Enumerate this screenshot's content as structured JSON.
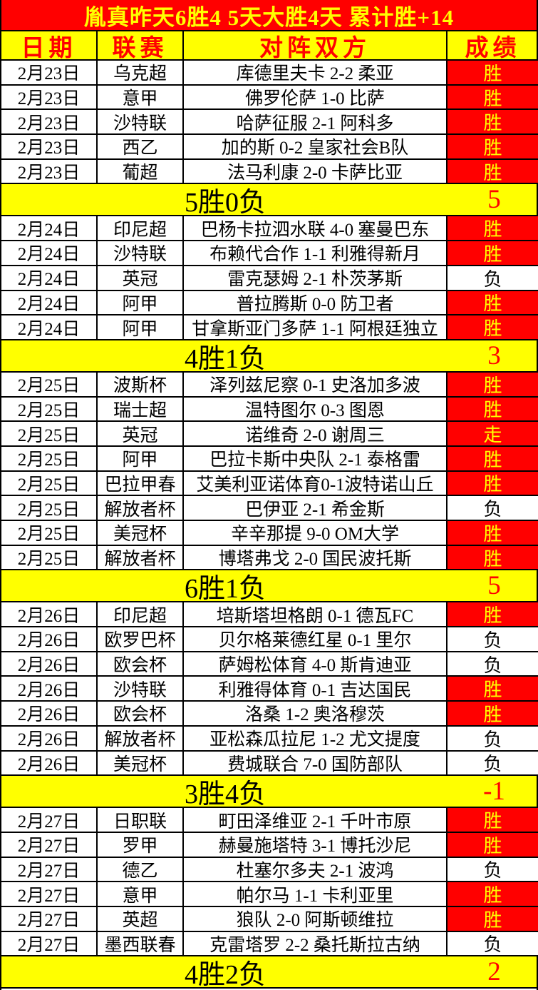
{
  "banner": {
    "title": "胤真昨天6胜4  5天大胜4天  累计胜+14"
  },
  "columns": {
    "date": "日期",
    "league": "联赛",
    "match": "对阵双方",
    "result": "成绩"
  },
  "colors": {
    "banner_bg": "#ff0000",
    "banner_text": "#ffff00",
    "header_bg": "#ffff00",
    "header_text": "#ff0000",
    "win_bg": "#ff0000",
    "win_text": "#ffff00",
    "loss_bg": "#ffffff",
    "loss_text": "#000000",
    "summary_bg": "#ffff00",
    "summary_label_text": "#000000",
    "summary_score_text": "#ff0000",
    "grid_line": "#000000"
  },
  "sections": [
    {
      "rows": [
        {
          "date": "2月23日",
          "league": "乌克超",
          "match": "库德里夫卡 2-2 柔亚",
          "result": "胜",
          "outcome": "win"
        },
        {
          "date": "2月23日",
          "league": "意甲",
          "match": "佛罗伦萨 1-0 比萨",
          "result": "胜",
          "outcome": "win"
        },
        {
          "date": "2月23日",
          "league": "沙特联",
          "match": "哈萨征服 2-1 阿科多",
          "result": "胜",
          "outcome": "win"
        },
        {
          "date": "2月23日",
          "league": "西乙",
          "match": "加的斯 0-2 皇家社会B队",
          "result": "胜",
          "outcome": "win"
        },
        {
          "date": "2月23日",
          "league": "葡超",
          "match": "法马利康 2-0 卡萨比亚",
          "result": "胜",
          "outcome": "win"
        }
      ],
      "summary": {
        "label": "5胜0负",
        "score": "5"
      }
    },
    {
      "rows": [
        {
          "date": "2月24日",
          "league": "印尼超",
          "match": "巴杨卡拉泗水联 4-0 塞曼巴东",
          "result": "胜",
          "outcome": "win"
        },
        {
          "date": "2月24日",
          "league": "沙特联",
          "match": "布赖代合作 1-1 利雅得新月",
          "result": "胜",
          "outcome": "win"
        },
        {
          "date": "2月24日",
          "league": "英冠",
          "match": "雷克瑟姆 2-1 朴茨茅斯",
          "result": "负",
          "outcome": "loss"
        },
        {
          "date": "2月24日",
          "league": "阿甲",
          "match": "普拉腾斯 0-0 防卫者",
          "result": "胜",
          "outcome": "win"
        },
        {
          "date": "2月24日",
          "league": "阿甲",
          "match": "甘拿斯亚门多萨 1-1 阿根廷独立",
          "result": "胜",
          "outcome": "win"
        }
      ],
      "summary": {
        "label": "4胜1负",
        "score": "3"
      }
    },
    {
      "rows": [
        {
          "date": "2月25日",
          "league": "波斯杯",
          "match": "泽列兹尼察 0-1 史洛加多波",
          "result": "胜",
          "outcome": "win"
        },
        {
          "date": "2月25日",
          "league": "瑞士超",
          "match": "温特图尔 0-3 图恩",
          "result": "胜",
          "outcome": "win"
        },
        {
          "date": "2月25日",
          "league": "英冠",
          "match": "诺维奇 2-0 谢周三",
          "result": "走",
          "outcome": "push"
        },
        {
          "date": "2月25日",
          "league": "阿甲",
          "match": "巴拉卡斯中央队 2-1 泰格雷",
          "result": "胜",
          "outcome": "win"
        },
        {
          "date": "2月25日",
          "league": "巴拉甲春",
          "match": "艾美利亚诺体育0-1波特诺山丘",
          "result": "胜",
          "outcome": "win"
        },
        {
          "date": "2月25日",
          "league": "解放者杯",
          "match": "巴伊亚 2-1 希金斯",
          "result": "负",
          "outcome": "loss"
        },
        {
          "date": "2月25日",
          "league": "美冠杯",
          "match": "辛辛那提 9-0 OM大学",
          "result": "胜",
          "outcome": "win"
        },
        {
          "date": "2月25日",
          "league": "解放者杯",
          "match": "博塔弗戈 2-0 国民波托斯",
          "result": "胜",
          "outcome": "win"
        }
      ],
      "summary": {
        "label": "6胜1负",
        "score": "5"
      }
    },
    {
      "rows": [
        {
          "date": "2月26日",
          "league": "印尼超",
          "match": "培斯塔坦格朗 0-1 德瓦FC",
          "result": "胜",
          "outcome": "win"
        },
        {
          "date": "2月26日",
          "league": "欧罗巴杯",
          "match": "贝尔格莱德红星 0-1 里尔",
          "result": "负",
          "outcome": "loss"
        },
        {
          "date": "2月26日",
          "league": "欧会杯",
          "match": "萨姆松体育 4-0 斯肯迪亚",
          "result": "负",
          "outcome": "loss"
        },
        {
          "date": "2月26日",
          "league": "沙特联",
          "match": "利雅得体育 0-1 吉达国民",
          "result": "胜",
          "outcome": "win"
        },
        {
          "date": "2月26日",
          "league": "欧会杯",
          "match": "洛桑 1-2 奥洛穆茨",
          "result": "胜",
          "outcome": "win"
        },
        {
          "date": "2月26日",
          "league": "解放者杯",
          "match": "亚松森瓜拉尼 1-2 尤文提度",
          "result": "负",
          "outcome": "loss"
        },
        {
          "date": "2月26日",
          "league": "美冠杯",
          "match": "费城联合 7-0 国防部队",
          "result": "负",
          "outcome": "loss"
        }
      ],
      "summary": {
        "label": "3胜4负",
        "score": "-1"
      }
    },
    {
      "rows": [
        {
          "date": "2月27日",
          "league": "日职联",
          "match": "町田泽维亚 2-1 千叶市原",
          "result": "胜",
          "outcome": "win"
        },
        {
          "date": "2月27日",
          "league": "罗甲",
          "match": "赫曼施塔特 3-1 博托沙尼",
          "result": "胜",
          "outcome": "win"
        },
        {
          "date": "2月27日",
          "league": "德乙",
          "match": "杜塞尔多夫 2-1 波鸿",
          "result": "负",
          "outcome": "loss"
        },
        {
          "date": "2月27日",
          "league": "意甲",
          "match": "帕尔马 1-1 卡利亚里",
          "result": "胜",
          "outcome": "win"
        },
        {
          "date": "2月27日",
          "league": "英超",
          "match": "狼队 2-0 阿斯顿维拉",
          "result": "胜",
          "outcome": "win"
        },
        {
          "date": "2月27日",
          "league": "墨西联春",
          "match": "克雷塔罗 2-2 桑托斯拉古纳",
          "result": "负",
          "outcome": "loss"
        }
      ],
      "summary": {
        "label": "4胜2负",
        "score": "2"
      }
    }
  ]
}
